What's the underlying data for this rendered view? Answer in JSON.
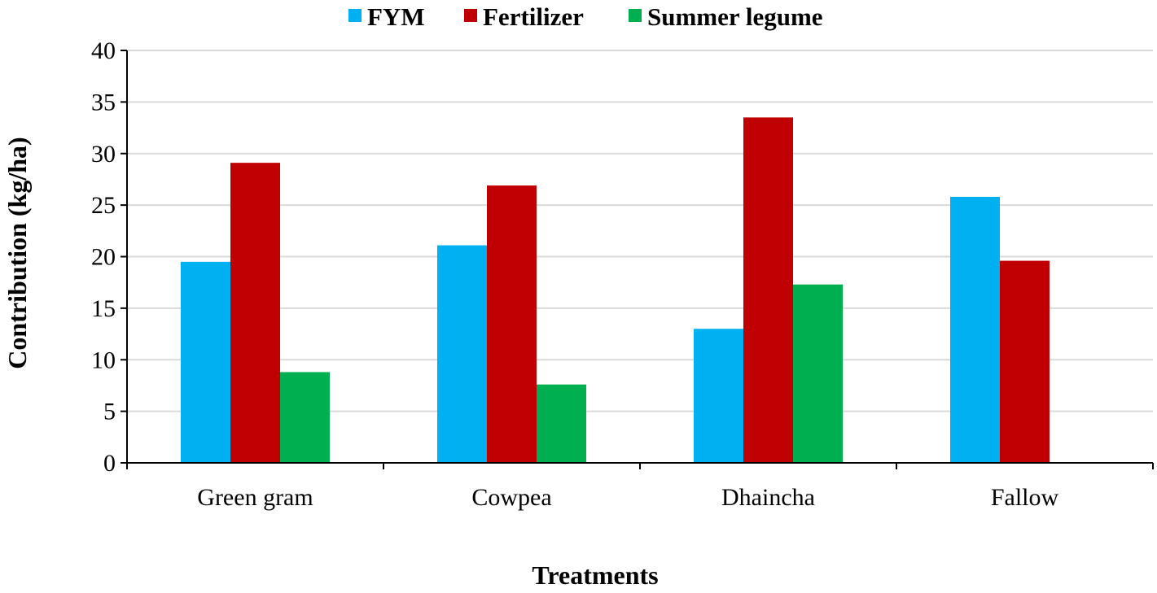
{
  "chart_data": {
    "type": "bar",
    "title": "",
    "xlabel": "Treatments",
    "ylabel": "Contribution (kg/ha)",
    "categories": [
      "Green gram",
      "Cowpea",
      "Dhaincha",
      "Fallow"
    ],
    "series": [
      {
        "name": "FYM",
        "color": "#00b0f0",
        "values": [
          19.5,
          21.1,
          13.0,
          25.8
        ]
      },
      {
        "name": "Fertilizer",
        "color": "#c00000",
        "values": [
          29.1,
          26.9,
          33.5,
          19.6
        ]
      },
      {
        "name": "Summer legume",
        "color": "#00b050",
        "values": [
          8.8,
          7.6,
          17.3,
          0
        ]
      }
    ],
    "ylim": [
      0,
      40
    ],
    "yticks": [
      "0",
      "5",
      "10",
      "15",
      "20",
      "25",
      "30",
      "35",
      "40"
    ],
    "grid": true,
    "legend_position": "top-center"
  }
}
